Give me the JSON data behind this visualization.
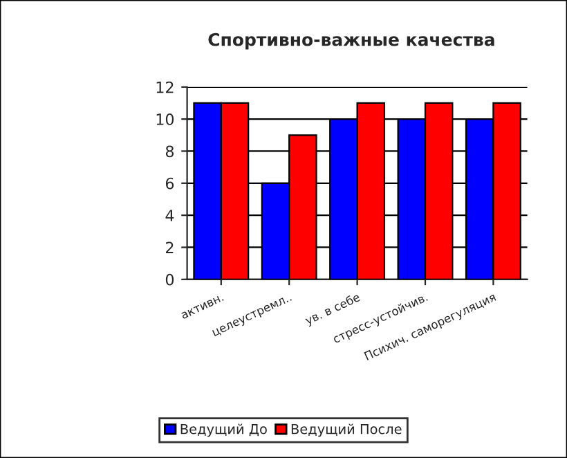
{
  "chart_data": {
    "type": "bar",
    "title": "Спортивно-важные качества",
    "categories": [
      "активн.",
      "целеустремл..",
      "ув. в себе",
      "стресс-устойчив.",
      "Психич. саморегуляция"
    ],
    "series": [
      {
        "name": "Ведущий До",
        "color": "#0000ff",
        "values": [
          11,
          6,
          10,
          10,
          10
        ]
      },
      {
        "name": "Ведущий После",
        "color": "#ff0000",
        "values": [
          11,
          9,
          11,
          11,
          11
        ]
      }
    ],
    "ylim": [
      0,
      12
    ],
    "yticks": [
      0,
      2,
      4,
      6,
      8,
      10,
      12
    ],
    "grid": "y",
    "legend": "bottom"
  }
}
